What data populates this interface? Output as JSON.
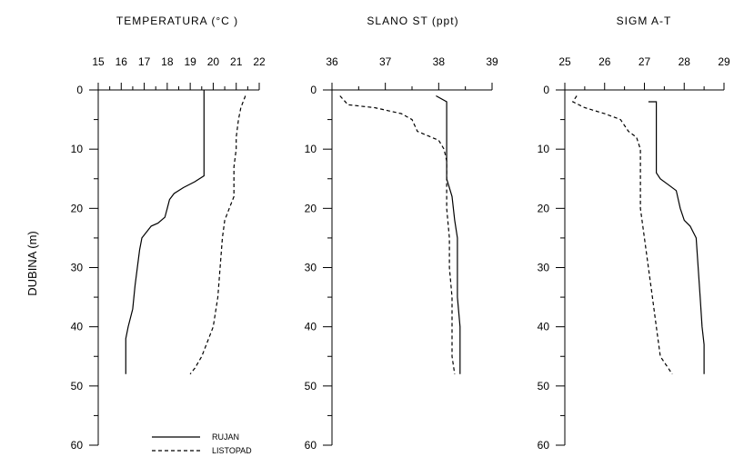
{
  "ylabel": "DUBINA (m)",
  "legend": [
    {
      "label": "RUJAN",
      "style": "solid"
    },
    {
      "label": "LISTOPAD",
      "style": "dashed"
    }
  ],
  "chart_data": [
    {
      "type": "line",
      "title": "TEMPERATURA (°C )",
      "xlabel": "TEMPERATURA (°C )",
      "ylabel": "DUBINA (m)",
      "xlim": [
        15,
        22
      ],
      "ylim": [
        0,
        60
      ],
      "y_inverted": true,
      "x_ticks": [
        15,
        16,
        17,
        18,
        19,
        20,
        21,
        22
      ],
      "x_tick_labels": [
        "15",
        "16",
        "17",
        "18",
        "19",
        "20",
        "21",
        "22"
      ],
      "x_axis_position": "top",
      "y_ticks": [
        0,
        10,
        20,
        30,
        40,
        50,
        60
      ],
      "y_tick_labels": [
        "0",
        "10",
        "20",
        "30",
        "40",
        "50",
        "60"
      ],
      "series": [
        {
          "name": "RUJAN",
          "style": "solid",
          "points": [
            [
              19.6,
              0
            ],
            [
              19.6,
              5
            ],
            [
              19.6,
              10
            ],
            [
              19.6,
              14.5
            ],
            [
              19.2,
              15.5
            ],
            [
              18.7,
              16.5
            ],
            [
              18.3,
              17.5
            ],
            [
              18.1,
              18.5
            ],
            [
              18.0,
              20
            ],
            [
              17.9,
              21.5
            ],
            [
              17.6,
              22.5
            ],
            [
              17.3,
              23
            ],
            [
              17.1,
              24
            ],
            [
              16.9,
              25
            ],
            [
              16.8,
              27
            ],
            [
              16.7,
              30
            ],
            [
              16.6,
              33
            ],
            [
              16.5,
              37
            ],
            [
              16.3,
              40
            ],
            [
              16.2,
              42
            ],
            [
              16.2,
              45
            ],
            [
              16.2,
              48
            ]
          ]
        },
        {
          "name": "LISTOPAD",
          "style": "dashed",
          "points": [
            [
              21.4,
              1
            ],
            [
              21.2,
              3
            ],
            [
              21.1,
              5
            ],
            [
              21.0,
              8
            ],
            [
              21.0,
              10
            ],
            [
              20.9,
              13
            ],
            [
              20.9,
              16
            ],
            [
              20.9,
              18
            ],
            [
              20.7,
              20
            ],
            [
              20.5,
              22
            ],
            [
              20.4,
              25
            ],
            [
              20.3,
              30
            ],
            [
              20.2,
              35
            ],
            [
              20.0,
              40
            ],
            [
              19.8,
              42
            ],
            [
              19.5,
              45
            ],
            [
              19.2,
              47
            ],
            [
              19.0,
              48
            ]
          ]
        }
      ]
    },
    {
      "type": "line",
      "title": "SLANO ST (ppt)",
      "xlabel": "SLANO ST (ppt)",
      "ylabel": "",
      "xlim": [
        36,
        39
      ],
      "ylim": [
        0,
        60
      ],
      "y_inverted": true,
      "x_ticks": [
        36,
        37,
        38,
        39
      ],
      "x_tick_labels": [
        "36",
        "37",
        "38",
        "39"
      ],
      "x_axis_position": "top",
      "y_ticks": [
        0,
        10,
        20,
        30,
        40,
        50,
        60
      ],
      "y_tick_labels": [
        "0",
        "10",
        "20",
        "30",
        "40",
        "50",
        "60"
      ],
      "series": [
        {
          "name": "RUJAN",
          "style": "solid",
          "points": [
            [
              37.95,
              1
            ],
            [
              38.15,
              2
            ],
            [
              38.15,
              5
            ],
            [
              38.15,
              10
            ],
            [
              38.15,
              15
            ],
            [
              38.25,
              18
            ],
            [
              38.3,
              22
            ],
            [
              38.35,
              25
            ],
            [
              38.35,
              30
            ],
            [
              38.35,
              35
            ],
            [
              38.4,
              40
            ],
            [
              38.4,
              48
            ]
          ]
        },
        {
          "name": "LISTOPAD",
          "style": "dashed",
          "points": [
            [
              36.15,
              1
            ],
            [
              36.3,
              2.5
            ],
            [
              36.8,
              3
            ],
            [
              37.3,
              4
            ],
            [
              37.5,
              5
            ],
            [
              37.6,
              7
            ],
            [
              38.0,
              8.5
            ],
            [
              38.1,
              10
            ],
            [
              38.15,
              12
            ],
            [
              38.15,
              15
            ],
            [
              38.15,
              20
            ],
            [
              38.2,
              25
            ],
            [
              38.2,
              30
            ],
            [
              38.25,
              35
            ],
            [
              38.25,
              40
            ],
            [
              38.25,
              45
            ],
            [
              38.3,
              48
            ]
          ]
        }
      ]
    },
    {
      "type": "line",
      "title": "SIGM A-T",
      "xlabel": "SIGM A-T",
      "ylabel": "",
      "xlim": [
        25,
        29
      ],
      "ylim": [
        0,
        60
      ],
      "y_inverted": true,
      "x_ticks": [
        25,
        26,
        27,
        28,
        29
      ],
      "x_tick_labels": [
        "25",
        "26",
        "27",
        "28",
        "29"
      ],
      "x_axis_position": "top",
      "y_ticks": [
        0,
        10,
        20,
        30,
        40,
        50,
        60
      ],
      "y_tick_labels": [
        "0",
        "10",
        "20",
        "30",
        "40",
        "50",
        "60"
      ],
      "series": [
        {
          "name": "RUJAN",
          "style": "solid",
          "points": [
            [
              27.1,
              2
            ],
            [
              27.3,
              2
            ],
            [
              27.3,
              5
            ],
            [
              27.3,
              10
            ],
            [
              27.3,
              14
            ],
            [
              27.4,
              15
            ],
            [
              27.6,
              16
            ],
            [
              27.8,
              17
            ],
            [
              27.9,
              20
            ],
            [
              28.0,
              22
            ],
            [
              28.15,
              23
            ],
            [
              28.3,
              25
            ],
            [
              28.35,
              30
            ],
            [
              28.4,
              35
            ],
            [
              28.45,
              40
            ],
            [
              28.5,
              43
            ],
            [
              28.5,
              48
            ]
          ]
        },
        {
          "name": "LISTOPAD",
          "style": "dashed",
          "points": [
            [
              25.3,
              1
            ],
            [
              25.2,
              2
            ],
            [
              25.5,
              3
            ],
            [
              26.0,
              4
            ],
            [
              26.4,
              5
            ],
            [
              26.6,
              7
            ],
            [
              26.8,
              8
            ],
            [
              26.9,
              10
            ],
            [
              26.9,
              15
            ],
            [
              26.9,
              20
            ],
            [
              27.0,
              25
            ],
            [
              27.1,
              30
            ],
            [
              27.2,
              35
            ],
            [
              27.3,
              40
            ],
            [
              27.4,
              45
            ],
            [
              27.6,
              47
            ],
            [
              27.7,
              48
            ]
          ]
        }
      ]
    }
  ]
}
